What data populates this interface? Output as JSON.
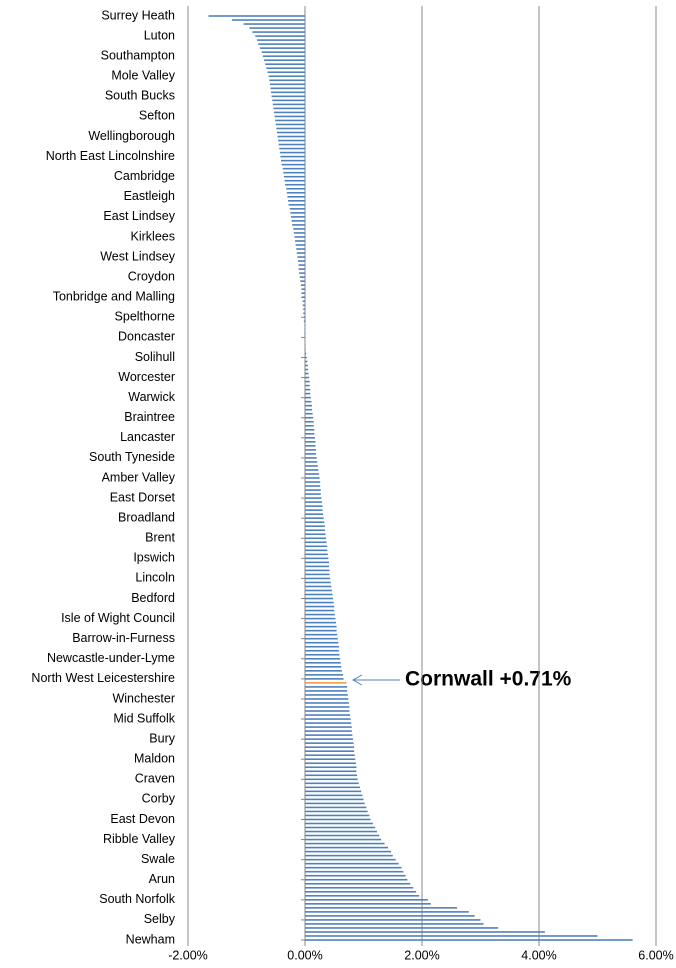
{
  "chart_data": {
    "type": "barh",
    "categories": [
      "Surrey Heath",
      null,
      null,
      null,
      null,
      "Luton",
      null,
      null,
      null,
      null,
      "Southampton",
      null,
      null,
      null,
      null,
      "Mole Valley",
      null,
      null,
      null,
      null,
      "South Bucks",
      null,
      null,
      null,
      null,
      "Sefton",
      null,
      null,
      null,
      null,
      "Wellingborough",
      null,
      null,
      null,
      null,
      "North East Lincolnshire",
      null,
      null,
      null,
      null,
      "Cambridge",
      null,
      null,
      null,
      null,
      "Eastleigh",
      null,
      null,
      null,
      null,
      "East Lindsey",
      null,
      null,
      null,
      null,
      "Kirklees",
      null,
      null,
      null,
      null,
      "West Lindsey",
      null,
      null,
      null,
      null,
      "Croydon",
      null,
      null,
      null,
      null,
      "Tonbridge and Malling",
      null,
      null,
      null,
      null,
      "Spelthorne",
      null,
      null,
      null,
      null,
      "Doncaster",
      null,
      null,
      null,
      null,
      "Solihull",
      null,
      null,
      null,
      null,
      "Worcester",
      null,
      null,
      null,
      null,
      "Warwick",
      null,
      null,
      null,
      null,
      "Braintree",
      null,
      null,
      null,
      null,
      "Lancaster",
      null,
      null,
      null,
      null,
      "South Tyneside",
      null,
      null,
      null,
      null,
      "Amber Valley",
      null,
      null,
      null,
      null,
      "East Dorset",
      null,
      null,
      null,
      null,
      "Broadland",
      null,
      null,
      null,
      null,
      "Brent",
      null,
      null,
      null,
      null,
      "Ipswich",
      null,
      null,
      null,
      null,
      "Lincoln",
      null,
      null,
      null,
      null,
      "Bedford",
      null,
      null,
      null,
      null,
      "Isle of Wight Council",
      null,
      null,
      null,
      null,
      "Barrow-in-Furness",
      null,
      null,
      null,
      null,
      "Newcastle-under-Lyme",
      null,
      null,
      null,
      null,
      "North West Leicestershire",
      null,
      null,
      null,
      null,
      "Winchester",
      null,
      null,
      null,
      null,
      "Mid Suffolk",
      null,
      null,
      null,
      null,
      "Bury",
      null,
      null,
      null,
      null,
      "Maldon",
      null,
      null,
      null,
      null,
      "Craven",
      null,
      null,
      null,
      null,
      "Corby",
      null,
      null,
      null,
      null,
      "East Devon",
      null,
      null,
      null,
      null,
      "Ribble Valley",
      null,
      null,
      null,
      null,
      "Swale",
      null,
      null,
      null,
      null,
      "Arun",
      null,
      null,
      null,
      null,
      "South Norfolk",
      null,
      null,
      null,
      null,
      "Selby",
      null,
      null,
      null,
      null,
      "Newham"
    ],
    "values": [
      -1.65,
      -1.25,
      -1.05,
      -0.95,
      -0.9,
      -0.85,
      -0.82,
      -0.8,
      -0.77,
      -0.74,
      -0.72,
      -0.7,
      -0.68,
      -0.66,
      -0.64,
      -0.62,
      -0.61,
      -0.6,
      -0.59,
      -0.58,
      -0.57,
      -0.56,
      -0.55,
      -0.54,
      -0.53,
      -0.52,
      -0.51,
      -0.5,
      -0.49,
      -0.48,
      -0.47,
      -0.46,
      -0.45,
      -0.44,
      -0.43,
      -0.42,
      -0.41,
      -0.4,
      -0.38,
      -0.37,
      -0.36,
      -0.35,
      -0.34,
      -0.32,
      -0.31,
      -0.3,
      -0.29,
      -0.28,
      -0.26,
      -0.25,
      -0.24,
      -0.23,
      -0.22,
      -0.2,
      -0.19,
      -0.18,
      -0.17,
      -0.16,
      -0.15,
      -0.14,
      -0.13,
      -0.12,
      -0.11,
      -0.11,
      -0.1,
      -0.09,
      -0.08,
      -0.07,
      -0.06,
      -0.06,
      -0.05,
      -0.04,
      -0.04,
      -0.03,
      -0.03,
      -0.02,
      -0.02,
      -0.01,
      -0.01,
      -0.01,
      0,
      0,
      0.01,
      0.01,
      0.02,
      0.03,
      0.04,
      0.05,
      0.05,
      0.06,
      0.07,
      0.08,
      0.08,
      0.09,
      0.09,
      0.1,
      0.11,
      0.12,
      0.12,
      0.13,
      0.14,
      0.15,
      0.15,
      0.16,
      0.16,
      0.17,
      0.18,
      0.18,
      0.19,
      0.19,
      0.2,
      0.21,
      0.22,
      0.23,
      0.24,
      0.25,
      0.26,
      0.26,
      0.27,
      0.27,
      0.28,
      0.29,
      0.3,
      0.3,
      0.31,
      0.32,
      0.33,
      0.34,
      0.34,
      0.35,
      0.36,
      0.37,
      0.38,
      0.38,
      0.39,
      0.4,
      0.41,
      0.41,
      0.42,
      0.42,
      0.43,
      0.44,
      0.45,
      0.46,
      0.47,
      0.48,
      0.49,
      0.5,
      0.5,
      0.51,
      0.52,
      0.53,
      0.54,
      0.54,
      0.55,
      0.56,
      0.57,
      0.58,
      0.58,
      0.59,
      0.6,
      0.61,
      0.62,
      0.63,
      0.65,
      0.66,
      0.71,
      0.72,
      0.72,
      0.73,
      0.74,
      0.75,
      0.76,
      0.76,
      0.77,
      0.78,
      0.79,
      0.8,
      0.8,
      0.81,
      0.82,
      0.83,
      0.84,
      0.84,
      0.85,
      0.86,
      0.87,
      0.88,
      0.88,
      0.89,
      0.9,
      0.92,
      0.94,
      0.96,
      0.98,
      1.0,
      1.02,
      1.05,
      1.07,
      1.1,
      1.12,
      1.16,
      1.2,
      1.23,
      1.27,
      1.3,
      1.36,
      1.42,
      1.47,
      1.5,
      1.55,
      1.6,
      1.65,
      1.68,
      1.72,
      1.75,
      1.8,
      1.85,
      1.9,
      1.95,
      2.1,
      2.15,
      2.6,
      2.8,
      2.9,
      3.0,
      3.05,
      3.3,
      4.1,
      5.0,
      5.6
    ],
    "color": "#4f81bd",
    "xlim": [
      -2,
      6
    ],
    "xticks": [
      {
        "value": -2,
        "label": "-2.00%"
      },
      {
        "value": 0,
        "label": "0.00%"
      },
      {
        "value": 2,
        "label": "2.00%"
      },
      {
        "value": 4,
        "label": "4.00%"
      },
      {
        "value": 6,
        "label": "6.00%"
      }
    ],
    "grid": true,
    "annotation": {
      "text": "Cornwall +0.71%",
      "bar": 166,
      "color": "#f79646"
    }
  }
}
